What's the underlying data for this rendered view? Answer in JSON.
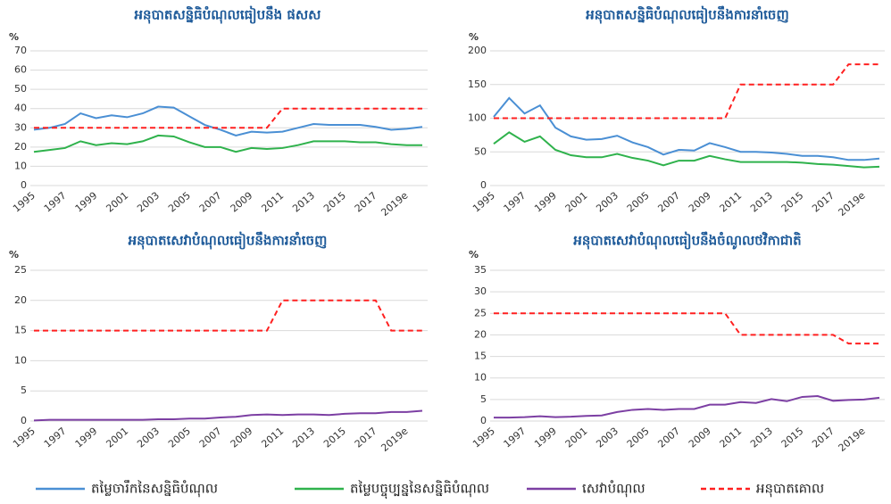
{
  "chart_data": [
    {
      "type": "line",
      "title": "អនុបាតសន្និធិបំណុលធៀបនឹង ផសស",
      "y_label": "%",
      "categories": [
        "1995",
        null,
        "1997",
        null,
        "1999",
        null,
        "2001",
        null,
        "2003",
        null,
        "2005",
        null,
        "2007",
        null,
        "2009",
        null,
        "2011",
        null,
        "2013",
        null,
        "2015",
        null,
        "2017",
        null,
        "2019e",
        null
      ],
      "series": [
        {
          "color": "#4a8fd4",
          "dashed": false,
          "values": [
            29,
            30,
            32,
            37.5,
            35,
            36.5,
            35.5,
            37.5,
            41,
            40.5,
            36,
            31.5,
            29,
            26,
            28,
            27.5,
            28,
            30,
            32,
            31.5,
            31.5,
            31.5,
            30.5,
            29,
            29.5,
            30.5
          ]
        },
        {
          "color": "#2fb24c",
          "dashed": false,
          "values": [
            17.5,
            18.5,
            19.5,
            23,
            21,
            22,
            21.5,
            23,
            26,
            25.5,
            22.5,
            20,
            20,
            17.5,
            19.5,
            19,
            19.5,
            21,
            23,
            23,
            23,
            22.5,
            22.5,
            21.5,
            21,
            21
          ]
        },
        {
          "color": "#ff2020",
          "dashed": true,
          "values": [
            30,
            30,
            30,
            30,
            30,
            30,
            30,
            30,
            30,
            30,
            30,
            30,
            30,
            30,
            30,
            30,
            40,
            40,
            40,
            40,
            40,
            40,
            40,
            40,
            40,
            40
          ]
        }
      ],
      "ylim": [
        0,
        70
      ],
      "yticks": [
        0,
        10,
        20,
        30,
        40,
        50,
        60,
        70
      ],
      "grid": true
    },
    {
      "type": "line",
      "title": "អនុបាតសន្និធិបំណុលធៀបនឹងការនាំចេញ",
      "y_label": "%",
      "categories": [
        "1995",
        null,
        "1997",
        null,
        "1999",
        null,
        "2001",
        null,
        "2003",
        null,
        "2005",
        null,
        "2007",
        null,
        "2009",
        null,
        "2011",
        null,
        "2013",
        null,
        "2015",
        null,
        "2017",
        null,
        "2019e",
        null
      ],
      "series": [
        {
          "color": "#4a8fd4",
          "dashed": false,
          "values": [
            102,
            130,
            107,
            119,
            86,
            73,
            68,
            69,
            74,
            64,
            57,
            46,
            53,
            52,
            63,
            57,
            50,
            50,
            49,
            47,
            44,
            44,
            42,
            38,
            38,
            40
          ]
        },
        {
          "color": "#2fb24c",
          "dashed": false,
          "values": [
            62,
            79,
            65,
            73,
            53,
            45,
            42,
            42,
            47,
            41,
            37,
            30,
            37,
            37,
            44,
            39,
            35,
            35,
            35,
            35,
            34,
            32,
            31,
            29,
            27,
            28
          ]
        },
        {
          "color": "#ff2020",
          "dashed": true,
          "values": [
            100,
            100,
            100,
            100,
            100,
            100,
            100,
            100,
            100,
            100,
            100,
            100,
            100,
            100,
            100,
            100,
            150,
            150,
            150,
            150,
            150,
            150,
            150,
            180,
            180,
            180
          ]
        }
      ],
      "ylim": [
        0,
        200
      ],
      "yticks": [
        0,
        50,
        100,
        150,
        200
      ],
      "grid": true
    },
    {
      "type": "line",
      "title": "អនុបាតសេវាបំណុលធៀបនឹងការនាំចេញ",
      "y_label": "%",
      "categories": [
        "1995",
        null,
        "1997",
        null,
        "1999",
        null,
        "2001",
        null,
        "2003",
        null,
        "2005",
        null,
        "2007",
        null,
        "2009",
        null,
        "2011",
        null,
        "2013",
        null,
        "2015",
        null,
        "2017",
        null,
        "2019e",
        null
      ],
      "series": [
        {
          "color": "#7c3fa3",
          "dashed": false,
          "values": [
            0.1,
            0.2,
            0.2,
            0.2,
            0.2,
            0.2,
            0.2,
            0.2,
            0.3,
            0.3,
            0.4,
            0.4,
            0.6,
            0.7,
            1.0,
            1.1,
            1.0,
            1.1,
            1.1,
            1.0,
            1.2,
            1.3,
            1.3,
            1.5,
            1.5,
            1.7
          ]
        },
        {
          "color": "#ff2020",
          "dashed": true,
          "values": [
            15,
            15,
            15,
            15,
            15,
            15,
            15,
            15,
            15,
            15,
            15,
            15,
            15,
            15,
            15,
            15,
            20,
            20,
            20,
            20,
            20,
            20,
            20,
            15,
            15,
            15
          ]
        }
      ],
      "ylim": [
        0,
        25
      ],
      "yticks": [
        0,
        5,
        10,
        15,
        20,
        25
      ],
      "grid": true
    },
    {
      "type": "line",
      "title": "អនុបាតសេវាបំណុលធៀបនឹងចំណូលថវិកាជាតិ",
      "y_label": "%",
      "categories": [
        "1995",
        null,
        "1997",
        null,
        "1999",
        null,
        "2001",
        null,
        "2003",
        null,
        "2005",
        null,
        "2007",
        null,
        "2009",
        null,
        "2011",
        null,
        "2013",
        null,
        "2015",
        null,
        "2017",
        null,
        "2019e",
        null
      ],
      "series": [
        {
          "color": "#7c3fa3",
          "dashed": false,
          "values": [
            0.8,
            0.8,
            0.9,
            1.1,
            0.9,
            1.0,
            1.2,
            1.3,
            2.1,
            2.6,
            2.8,
            2.6,
            2.8,
            2.8,
            3.8,
            3.8,
            4.4,
            4.2,
            5.1,
            4.6,
            5.6,
            5.8,
            4.7,
            4.9,
            5.0,
            5.4
          ]
        },
        {
          "color": "#ff2020",
          "dashed": true,
          "values": [
            25,
            25,
            25,
            25,
            25,
            25,
            25,
            25,
            25,
            25,
            25,
            25,
            25,
            25,
            25,
            25,
            20,
            20,
            20,
            20,
            20,
            20,
            20,
            18,
            18,
            18
          ]
        }
      ],
      "ylim": [
        0,
        35
      ],
      "yticks": [
        0,
        5,
        10,
        15,
        20,
        25,
        30,
        35
      ],
      "grid": true
    }
  ],
  "legend": [
    {
      "name": "តម្លៃចារឹកនៃសន្និធិបំណុល",
      "color": "#4a8fd4",
      "dashed": false
    },
    {
      "name": "តម្លៃបច្ចុប្បន្ននៃសន្និធិបំណុល",
      "color": "#2fb24c",
      "dashed": false
    },
    {
      "name": "សេវាបំណុល",
      "color": "#7c3fa3",
      "dashed": false
    },
    {
      "name": "អនុបាតគោល",
      "color": "#ff2020",
      "dashed": true
    }
  ]
}
